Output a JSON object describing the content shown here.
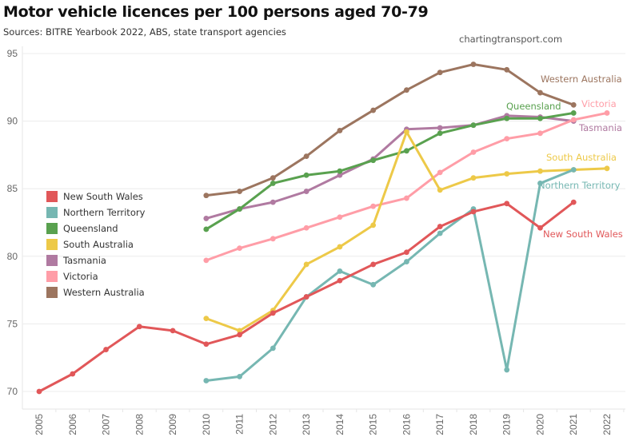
{
  "header": {
    "title": "Motor vehicle licences per 100 persons aged 70-79",
    "subtitle": "Sources: BITRE Yearbook 2022, ABS, state transport agencies",
    "credit": "chartingtransport.com"
  },
  "chart_data": {
    "type": "line",
    "title": "Motor vehicle licences per 100 persons aged 70-79",
    "subtitle": "Sources: BITRE Yearbook 2022, ABS, state transport agencies",
    "xlabel": "",
    "ylabel": "",
    "x": [
      2005,
      2006,
      2007,
      2008,
      2009,
      2010,
      2011,
      2012,
      2013,
      2014,
      2015,
      2016,
      2017,
      2018,
      2019,
      2020,
      2021,
      2022
    ],
    "x_tick_labels": [
      "2005",
      "2006",
      "2007",
      "2008",
      "2009",
      "2010",
      "2011",
      "2012",
      "2013",
      "2014",
      "2015",
      "2016",
      "2017",
      "2018",
      "2019",
      "2020",
      "2021",
      "2022"
    ],
    "ylim": [
      69,
      95.5
    ],
    "y_ticks": [
      70,
      75,
      80,
      85,
      90,
      95
    ],
    "y_tick_labels": [
      "70",
      "75",
      "80",
      "85",
      "90",
      "95"
    ],
    "grid": true,
    "legend_position": "left",
    "series": [
      {
        "name": "New South Wales",
        "color": "#e15759",
        "end_label": "New South Wales",
        "values": [
          70.0,
          71.3,
          73.1,
          74.8,
          74.5,
          73.5,
          74.2,
          75.8,
          77.0,
          78.2,
          79.4,
          80.3,
          82.2,
          83.3,
          83.9,
          82.1,
          84.0,
          null
        ]
      },
      {
        "name": "Northern Territory",
        "color": "#76b7b2",
        "end_label": "Northern Territory",
        "values": [
          null,
          null,
          null,
          null,
          null,
          70.8,
          71.1,
          73.2,
          77.0,
          78.9,
          77.9,
          79.6,
          81.7,
          83.5,
          71.6,
          85.4,
          86.4,
          null
        ]
      },
      {
        "name": "Queensland",
        "color": "#59a14f",
        "end_label": "Queensland",
        "values": [
          null,
          null,
          null,
          null,
          null,
          82.0,
          83.5,
          85.4,
          86.0,
          86.3,
          87.1,
          87.8,
          89.1,
          89.7,
          90.2,
          90.2,
          90.6,
          null
        ]
      },
      {
        "name": "South Australia",
        "color": "#edc948",
        "end_label": "South Australia",
        "values": [
          null,
          null,
          null,
          null,
          null,
          75.4,
          74.5,
          76.0,
          79.4,
          80.7,
          82.3,
          89.2,
          84.9,
          85.8,
          86.1,
          86.3,
          86.4,
          86.5
        ]
      },
      {
        "name": "Tasmania",
        "color": "#b07aa1",
        "end_label": "Tasmania",
        "values": [
          null,
          null,
          null,
          null,
          null,
          82.8,
          83.5,
          84.0,
          84.8,
          86.0,
          87.2,
          89.4,
          89.5,
          89.7,
          90.4,
          90.3,
          90.0,
          null
        ]
      },
      {
        "name": "Victoria",
        "color": "#ff9da7",
        "end_label": "Victoria",
        "values": [
          null,
          null,
          null,
          null,
          null,
          79.7,
          80.6,
          81.3,
          82.1,
          82.9,
          83.7,
          84.3,
          86.2,
          87.7,
          88.7,
          89.1,
          90.1,
          90.6
        ]
      },
      {
        "name": "Western Australia",
        "color": "#9c755f",
        "end_label": "Western Australia",
        "values": [
          null,
          null,
          null,
          null,
          null,
          84.5,
          84.8,
          85.8,
          87.4,
          89.3,
          90.8,
          92.3,
          93.6,
          94.2,
          93.8,
          92.1,
          91.2,
          null
        ]
      }
    ]
  },
  "legend": {
    "items": [
      {
        "label": "New South Wales",
        "color": "#e15759"
      },
      {
        "label": "Northern Territory",
        "color": "#76b7b2"
      },
      {
        "label": "Queensland",
        "color": "#59a14f"
      },
      {
        "label": "South Australia",
        "color": "#edc948"
      },
      {
        "label": "Tasmania",
        "color": "#b07aa1"
      },
      {
        "label": "Victoria",
        "color": "#ff9da7"
      },
      {
        "label": "Western Australia",
        "color": "#9c755f"
      }
    ]
  }
}
